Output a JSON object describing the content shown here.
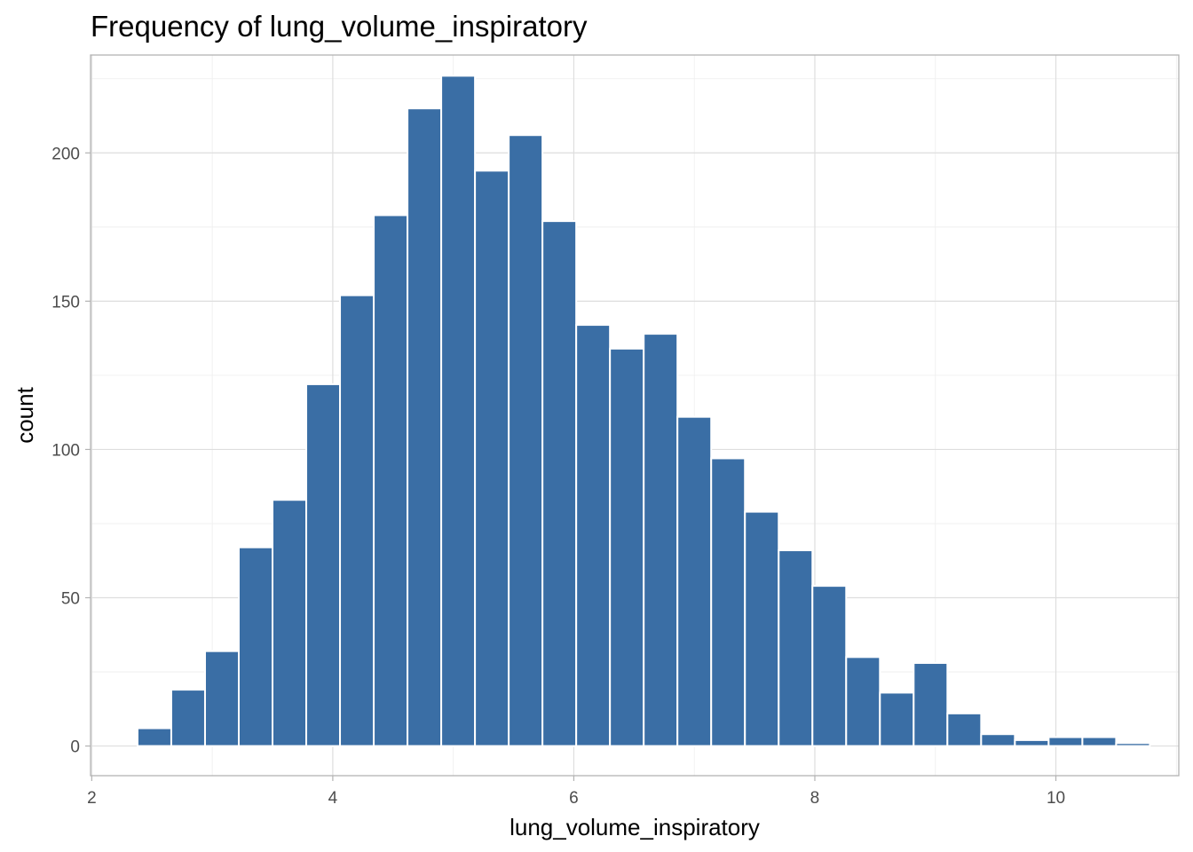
{
  "chart_data": {
    "type": "bar",
    "title": "Frequency of lung_volume_inspiratory",
    "xlabel": "lung_volume_inspiratory",
    "ylabel": "count",
    "xlim": [
      1.99,
      11.02
    ],
    "ylim": [
      -10,
      233
    ],
    "x_ticks": [
      2,
      4,
      6,
      8,
      10
    ],
    "y_ticks": [
      0,
      50,
      100,
      150,
      200
    ],
    "grid": true,
    "bar_color": "#3A6EA5",
    "bar_outline": "#FFFFFF",
    "bins": [
      {
        "x": 2.52,
        "value": 6
      },
      {
        "x": 2.8,
        "value": 19
      },
      {
        "x": 3.08,
        "value": 32
      },
      {
        "x": 3.36,
        "value": 67
      },
      {
        "x": 3.64,
        "value": 83
      },
      {
        "x": 3.92,
        "value": 122
      },
      {
        "x": 4.2,
        "value": 152
      },
      {
        "x": 4.48,
        "value": 179
      },
      {
        "x": 4.76,
        "value": 215
      },
      {
        "x": 5.04,
        "value": 226
      },
      {
        "x": 5.32,
        "value": 194
      },
      {
        "x": 5.6,
        "value": 206
      },
      {
        "x": 5.88,
        "value": 177
      },
      {
        "x": 6.16,
        "value": 142
      },
      {
        "x": 6.44,
        "value": 134
      },
      {
        "x": 6.72,
        "value": 139
      },
      {
        "x": 7.0,
        "value": 111
      },
      {
        "x": 7.28,
        "value": 97
      },
      {
        "x": 7.56,
        "value": 79
      },
      {
        "x": 7.84,
        "value": 66
      },
      {
        "x": 8.12,
        "value": 54
      },
      {
        "x": 8.4,
        "value": 30
      },
      {
        "x": 8.68,
        "value": 18
      },
      {
        "x": 8.96,
        "value": 28
      },
      {
        "x": 9.24,
        "value": 11
      },
      {
        "x": 9.52,
        "value": 4
      },
      {
        "x": 9.8,
        "value": 2
      },
      {
        "x": 10.08,
        "value": 3
      },
      {
        "x": 10.36,
        "value": 3
      },
      {
        "x": 10.64,
        "value": 1
      }
    ],
    "bin_width": 0.28
  }
}
